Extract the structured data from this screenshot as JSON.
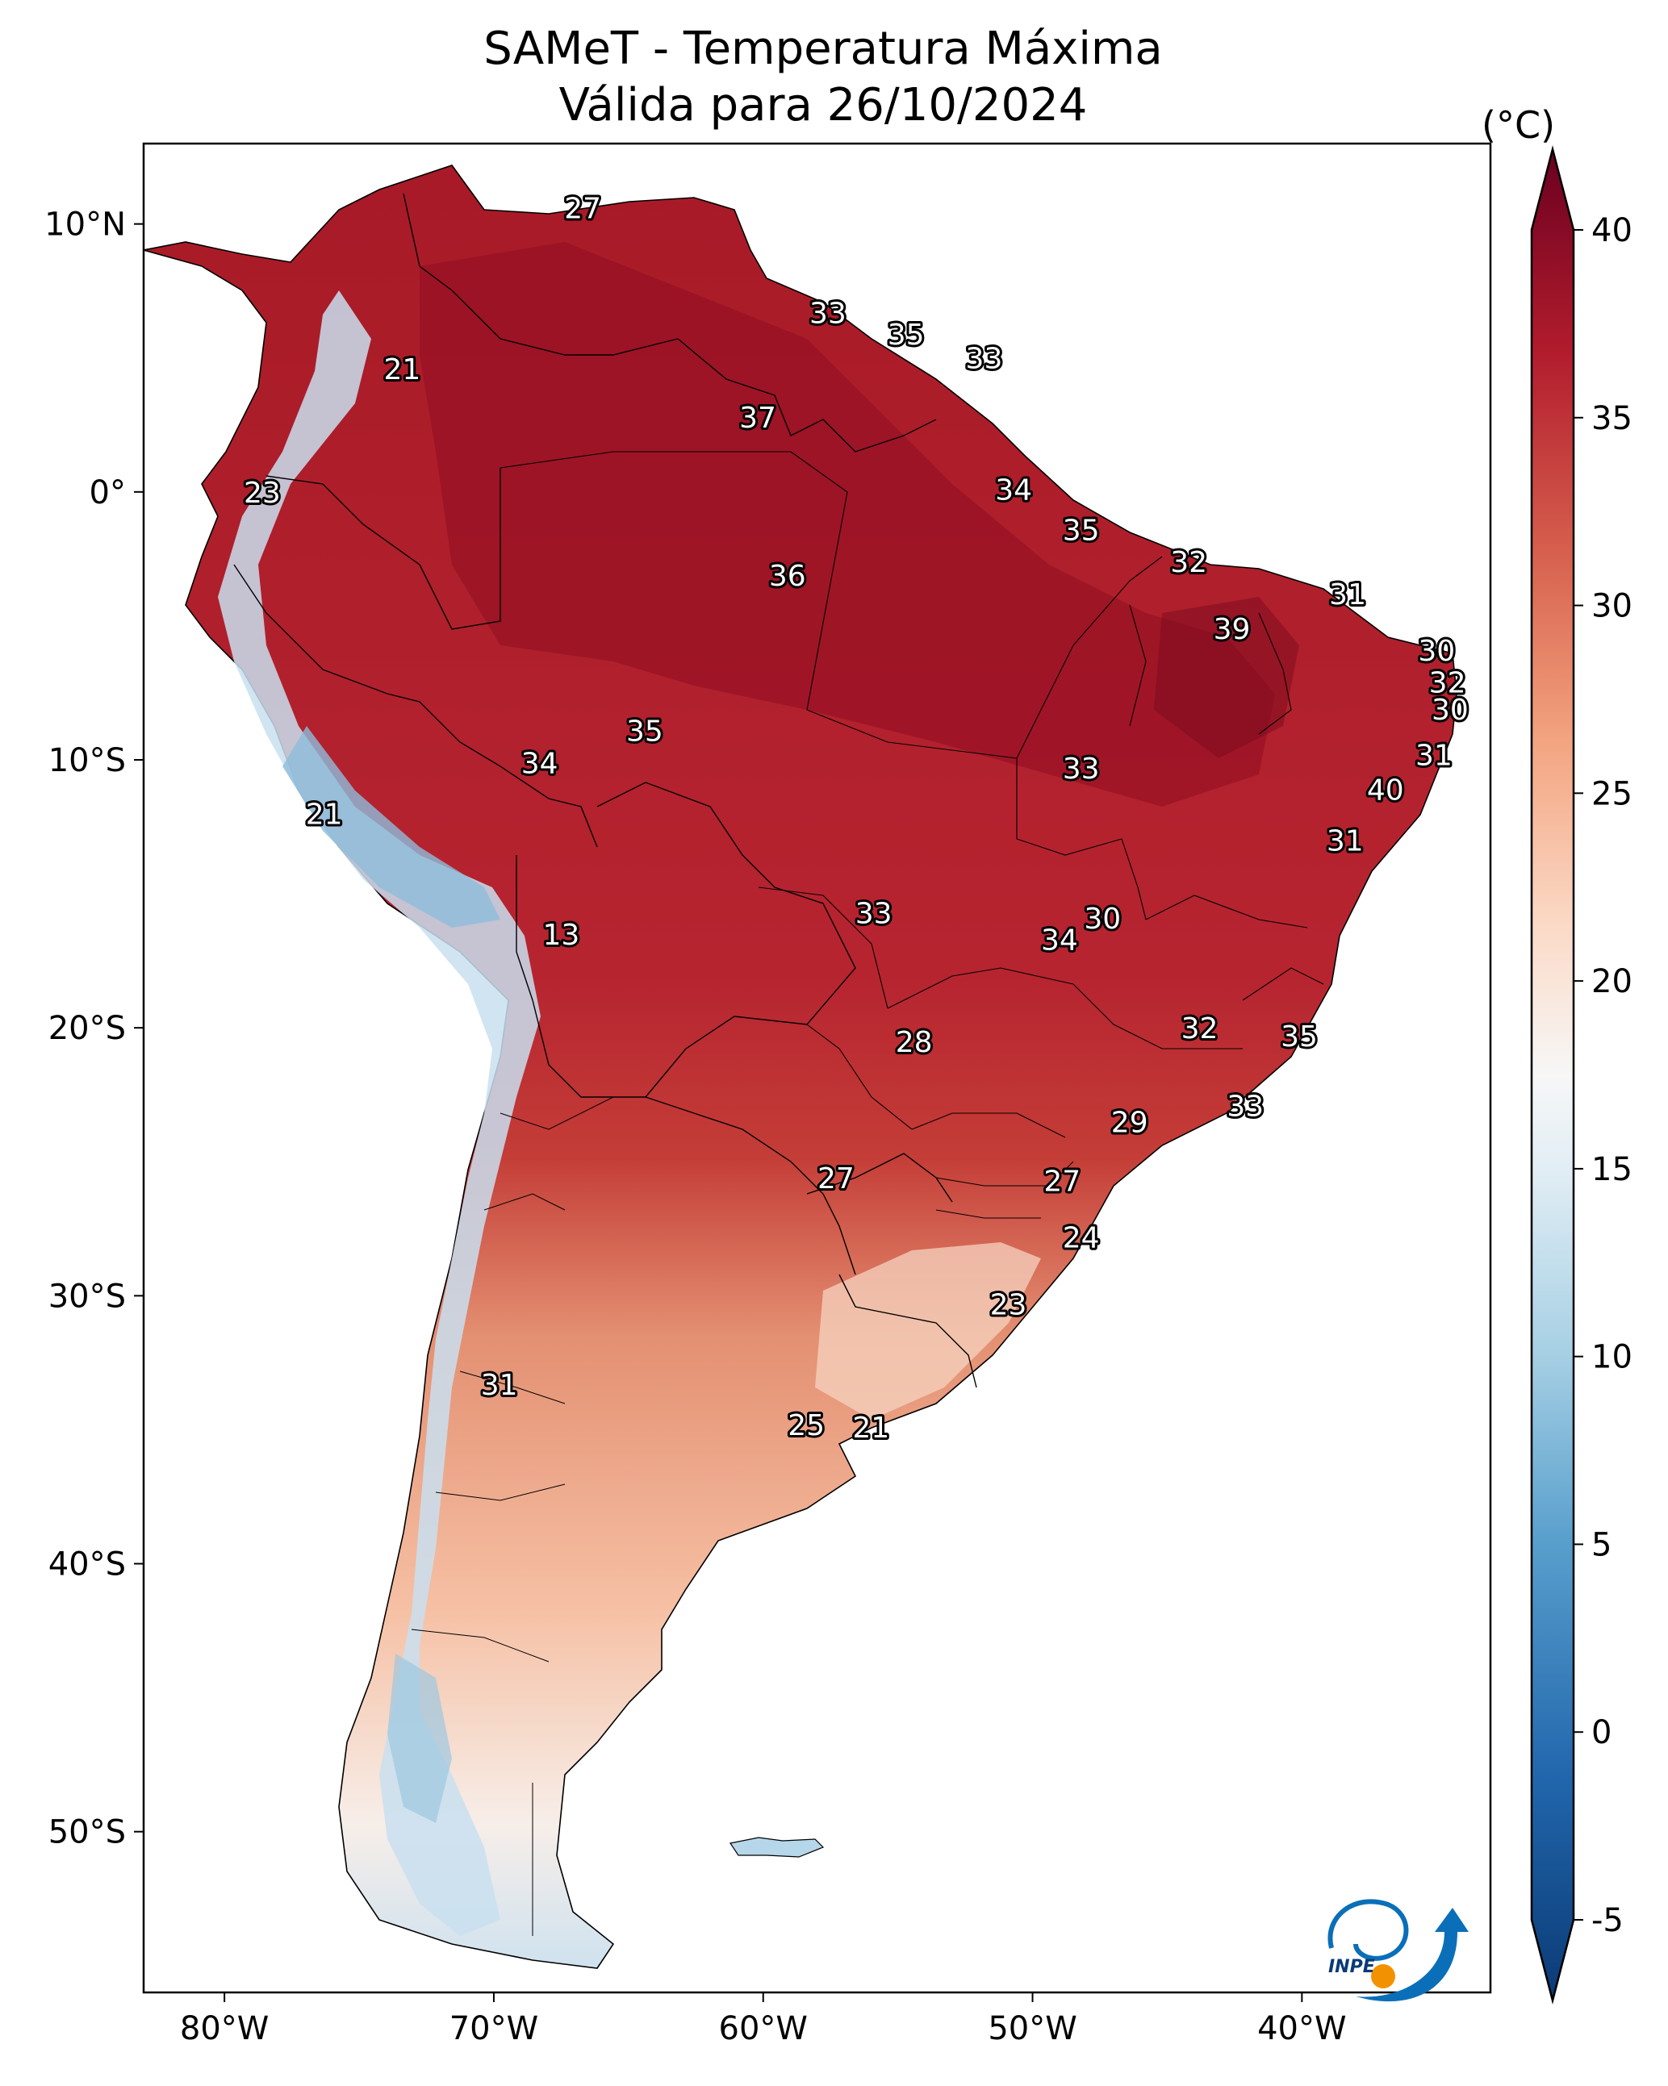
{
  "title": "SAMeT - Temperatura Máxima",
  "subtitle": "Válida para 26/10/2024",
  "colorbar": {
    "unit": "(°C)",
    "ticks": [
      "40",
      "35",
      "30",
      "25",
      "20",
      "15",
      "10",
      "5",
      "0",
      "-5"
    ],
    "range": [
      -5,
      40
    ],
    "extend": "both",
    "colormap": [
      "#08306b",
      "#2166ac",
      "#4393c3",
      "#92c5de",
      "#d1e5f0",
      "#f7f7f7",
      "#fddbc7",
      "#f4a582",
      "#d6604d",
      "#b2182b",
      "#67001f"
    ]
  },
  "axes": {
    "lon_labels": [
      "80°W",
      "70°W",
      "60°W",
      "50°W",
      "40°W"
    ],
    "lat_labels": [
      "10°N",
      "0°",
      "10°S",
      "20°S",
      "30°S",
      "40°S",
      "50°S"
    ],
    "lon_range": [
      -83,
      -33
    ],
    "lat_range": [
      -56,
      13
    ]
  },
  "logo": {
    "text": "INPE",
    "colors": [
      "#0a6fb8",
      "#f39200"
    ]
  },
  "map_labels": [
    {
      "text": "27",
      "lon": -66.7,
      "lat": 10.6
    },
    {
      "text": "21",
      "lon": -73.4,
      "lat": 4.6
    },
    {
      "text": "23",
      "lon": -78.6,
      "lat": 0.0
    },
    {
      "text": "33",
      "lon": -57.6,
      "lat": 6.7
    },
    {
      "text": "35",
      "lon": -54.7,
      "lat": 5.9
    },
    {
      "text": "33",
      "lon": -51.8,
      "lat": 5.0
    },
    {
      "text": "37",
      "lon": -60.2,
      "lat": 2.8
    },
    {
      "text": "34",
      "lon": -50.7,
      "lat": 0.1
    },
    {
      "text": "35",
      "lon": -48.2,
      "lat": -1.4
    },
    {
      "text": "36",
      "lon": -59.1,
      "lat": -3.1
    },
    {
      "text": "32",
      "lon": -44.2,
      "lat": -2.6
    },
    {
      "text": "31",
      "lon": -38.3,
      "lat": -3.8
    },
    {
      "text": "39",
      "lon": -42.6,
      "lat": -5.1
    },
    {
      "text": "30",
      "lon": -35.0,
      "lat": -5.9
    },
    {
      "text": "32",
      "lon": -34.6,
      "lat": -7.1
    },
    {
      "text": "30",
      "lon": -34.5,
      "lat": -8.1
    },
    {
      "text": "35",
      "lon": -64.4,
      "lat": -8.9
    },
    {
      "text": "34",
      "lon": -68.3,
      "lat": -10.1
    },
    {
      "text": "33",
      "lon": -48.2,
      "lat": -10.3
    },
    {
      "text": "31",
      "lon": -35.1,
      "lat": -9.8
    },
    {
      "text": "40",
      "lon": -36.9,
      "lat": -11.1
    },
    {
      "text": "21",
      "lon": -76.3,
      "lat": -12.0
    },
    {
      "text": "31",
      "lon": -38.4,
      "lat": -13.0
    },
    {
      "text": "33",
      "lon": -55.9,
      "lat": -15.7
    },
    {
      "text": "30",
      "lon": -47.4,
      "lat": -15.9
    },
    {
      "text": "34",
      "lon": -49.0,
      "lat": -16.7
    },
    {
      "text": "13",
      "lon": -67.5,
      "lat": -16.5
    },
    {
      "text": "32",
      "lon": -43.8,
      "lat": -20.0
    },
    {
      "text": "35",
      "lon": -40.1,
      "lat": -20.3
    },
    {
      "text": "28",
      "lon": -54.4,
      "lat": -20.5
    },
    {
      "text": "33",
      "lon": -42.1,
      "lat": -22.9
    },
    {
      "text": "29",
      "lon": -46.4,
      "lat": -23.5
    },
    {
      "text": "27",
      "lon": -57.3,
      "lat": -25.6
    },
    {
      "text": "27",
      "lon": -48.9,
      "lat": -25.7
    },
    {
      "text": "24",
      "lon": -48.2,
      "lat": -27.8
    },
    {
      "text": "23",
      "lon": -50.9,
      "lat": -30.3
    },
    {
      "text": "31",
      "lon": -69.8,
      "lat": -33.3
    },
    {
      "text": "25",
      "lon": -58.4,
      "lat": -34.8
    },
    {
      "text": "21",
      "lon": -56.0,
      "lat": -34.9
    }
  ]
}
